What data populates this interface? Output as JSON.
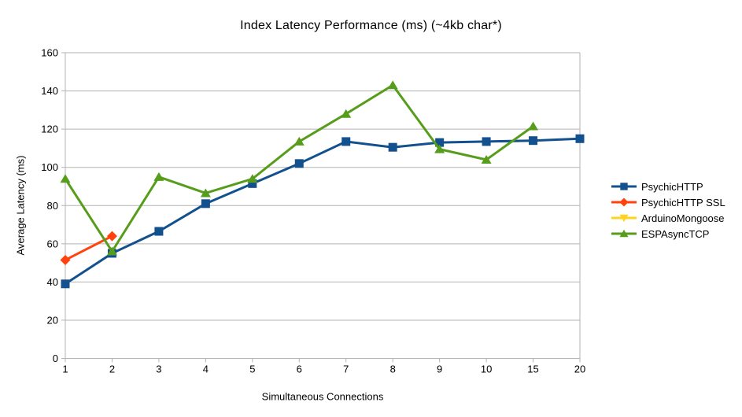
{
  "title": "Index Latency Performance (ms) (~4kb char*)",
  "axis_color": "#b3b3b3",
  "chart_data": {
    "type": "line",
    "title": "Index Latency Performance (ms) (~4kb char*)",
    "xlabel": "Simultaneous Connections",
    "ylabel": "Average Latency (ms)",
    "categories": [
      "1",
      "2",
      "3",
      "4",
      "5",
      "6",
      "7",
      "8",
      "9",
      "10",
      "15",
      "20"
    ],
    "ylim": [
      0,
      160
    ],
    "yticks": [
      0,
      20,
      40,
      60,
      80,
      100,
      120,
      140,
      160
    ],
    "grid": true,
    "legend_position": "right",
    "series": [
      {
        "name": "PsychicHTTP",
        "color": "#12508e",
        "marker": "square",
        "values": [
          39,
          55,
          66.5,
          81,
          91.5,
          102,
          113.5,
          110.5,
          113,
          113.5,
          114,
          115
        ]
      },
      {
        "name": "PsychicHTTP SSL",
        "color": "#ff420e",
        "marker": "diamond",
        "values": [
          51.5,
          64,
          null,
          null,
          null,
          null,
          null,
          null,
          null,
          null,
          null,
          null
        ]
      },
      {
        "name": "ArduinoMongoose",
        "color": "#ffd320",
        "marker": "triangle-down",
        "values": [
          null,
          null,
          null,
          null,
          null,
          null,
          null,
          null,
          null,
          null,
          null,
          null
        ]
      },
      {
        "name": "ESPAsyncTCP",
        "color": "#579d1c",
        "marker": "triangle-up",
        "values": [
          94,
          56,
          95,
          86.5,
          94,
          113.5,
          128,
          143,
          109.5,
          104,
          121.5,
          null
        ]
      }
    ]
  }
}
